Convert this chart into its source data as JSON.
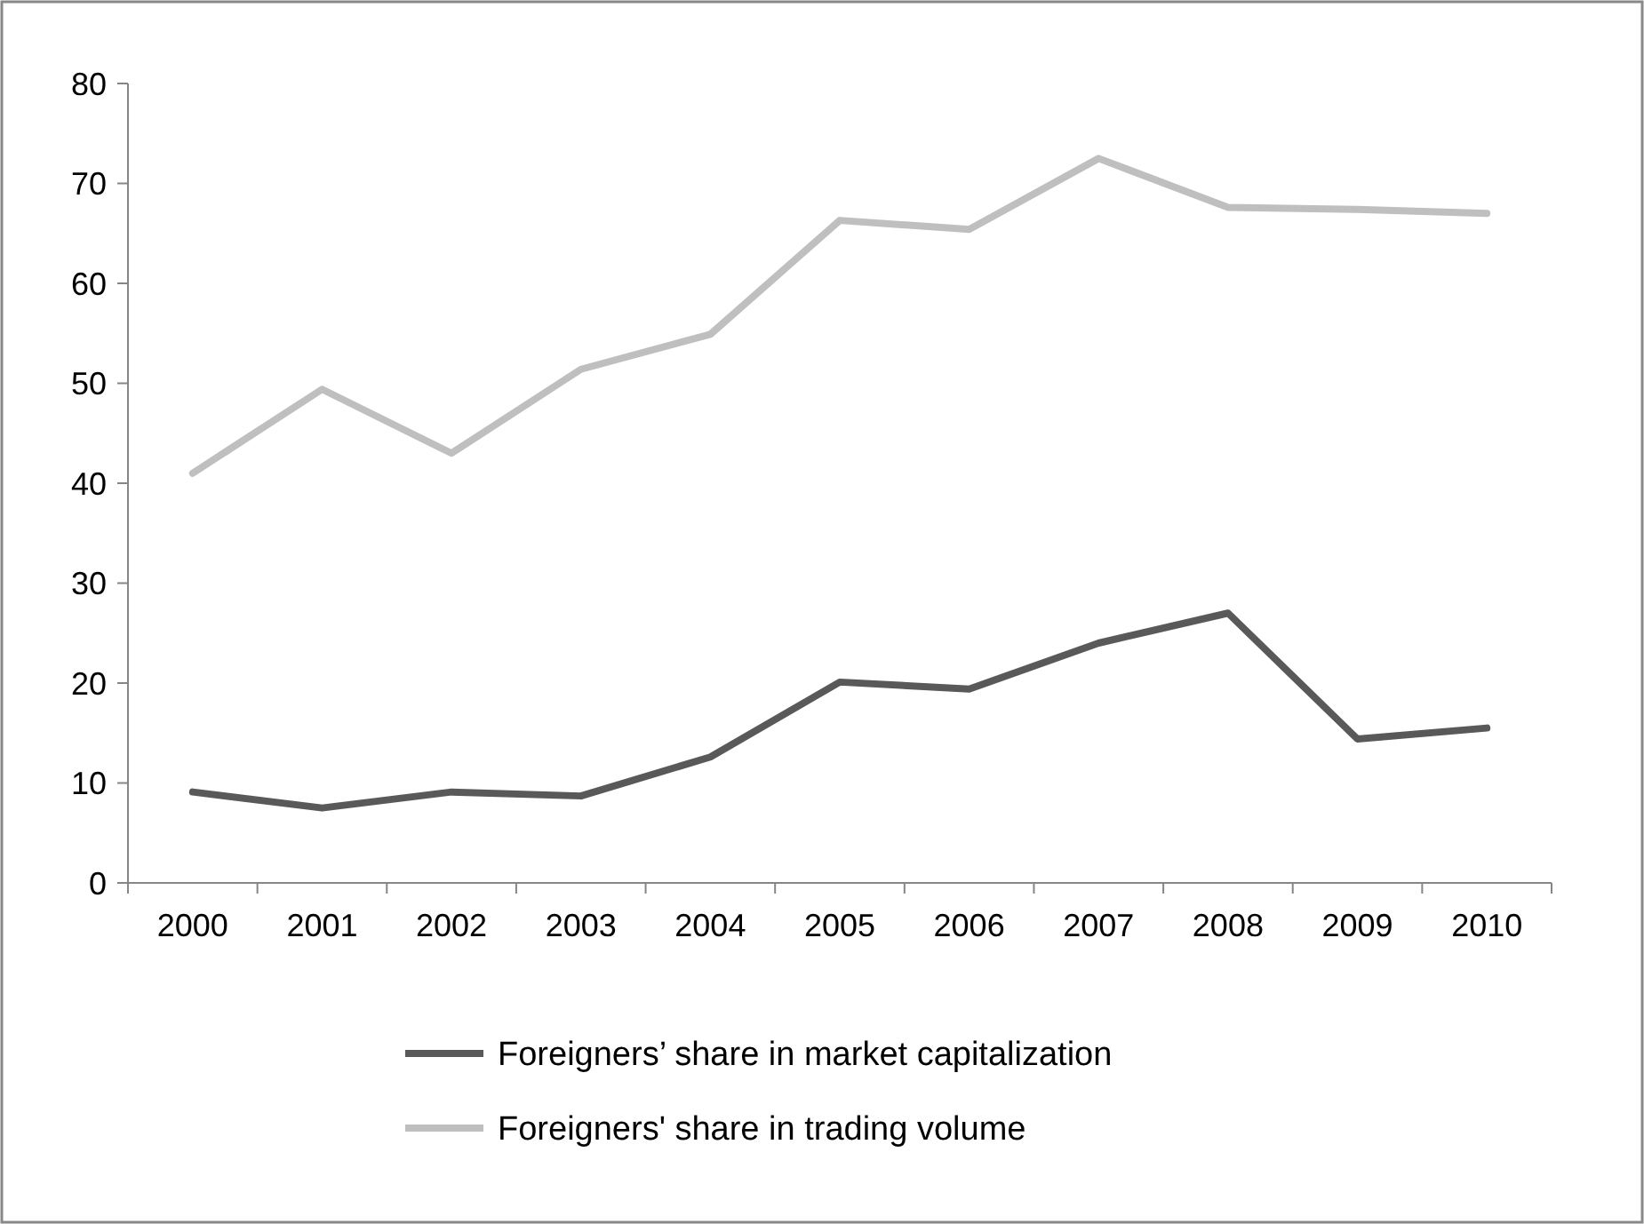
{
  "chart_data": {
    "type": "line",
    "categories": [
      "2000",
      "2001",
      "2002",
      "2003",
      "2004",
      "2005",
      "2006",
      "2007",
      "2008",
      "2009",
      "2010"
    ],
    "series": [
      {
        "name": "Foreigners’ share in market capitalization",
        "color": "#595959",
        "values": [
          9.1,
          7.5,
          9.1,
          8.7,
          12.6,
          20.1,
          19.4,
          24,
          27,
          14.4,
          15.5
        ]
      },
      {
        "name": "Foreigners' share in trading volume",
        "color": "#bfbfbf",
        "values": [
          41,
          49.4,
          43,
          51.4,
          54.9,
          66.3,
          65.4,
          72.5,
          67.6,
          67.4,
          67
        ]
      }
    ],
    "ylim": [
      0,
      80
    ],
    "yticks": [
      0,
      10,
      20,
      30,
      40,
      50,
      60,
      70,
      80
    ],
    "grid": false,
    "legend": "bottom",
    "marker": "none",
    "line_style": "solid"
  }
}
